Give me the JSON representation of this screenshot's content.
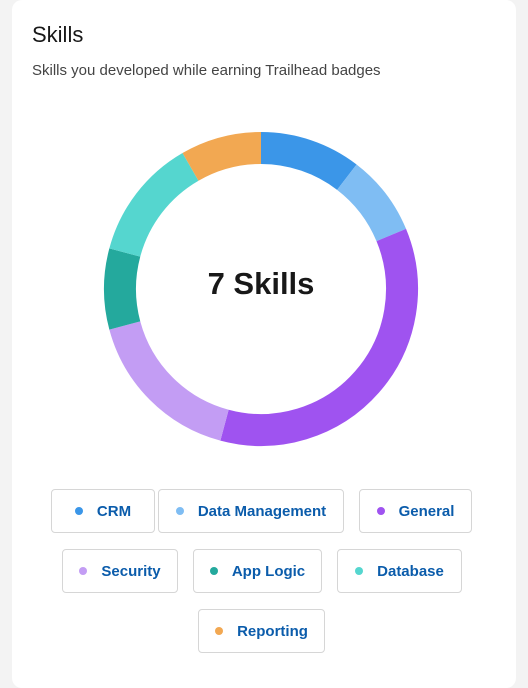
{
  "card": {
    "title": "Skills",
    "subtitle": "Skills you developed while earning Trailhead badges",
    "center_label": "7 Skills"
  },
  "chart_data": {
    "type": "pie",
    "style": "donut",
    "categories": [
      "CRM",
      "Data Management",
      "General",
      "Security",
      "App Logic",
      "Database",
      "Reporting"
    ],
    "values": [
      10,
      8,
      34,
      16,
      8,
      12,
      8
    ],
    "colors": [
      "#3b96e8",
      "#7fbdf3",
      "#9f53f0",
      "#c39df4",
      "#24a99d",
      "#55d6cf",
      "#f2a852"
    ]
  },
  "legend": [
    {
      "label": "CRM",
      "color": "#3b96e8"
    },
    {
      "label": "Data Management",
      "color": "#7fbdf3"
    },
    {
      "label": "General",
      "color": "#9f53f0"
    },
    {
      "label": "Security",
      "color": "#c39df4"
    },
    {
      "label": "App Logic",
      "color": "#24a99d"
    },
    {
      "label": "Database",
      "color": "#55d6cf"
    },
    {
      "label": "Reporting",
      "color": "#f2a852"
    }
  ]
}
